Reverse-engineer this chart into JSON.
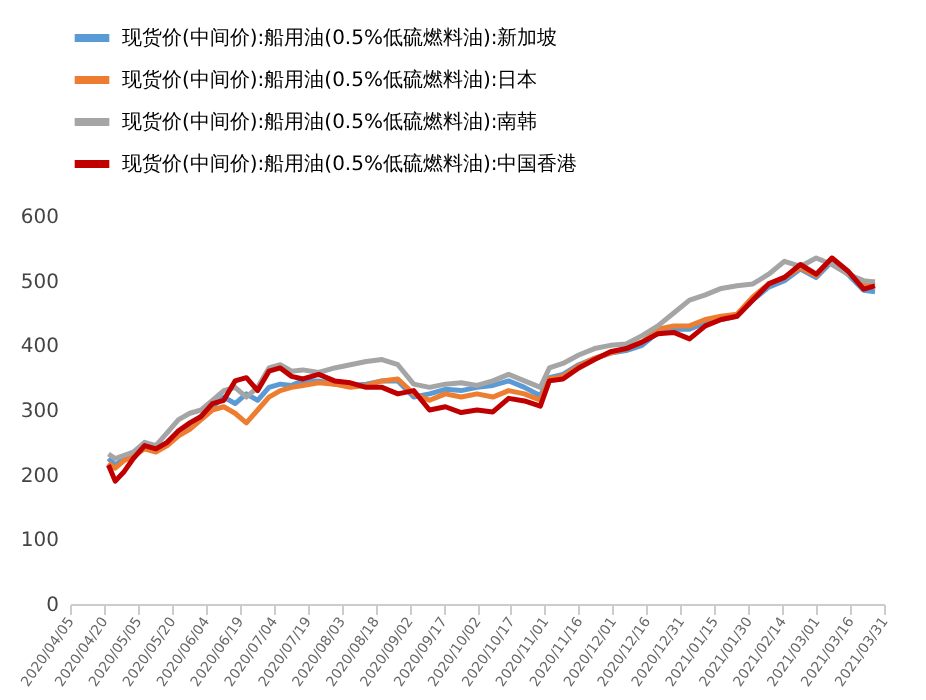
{
  "chart_data": {
    "type": "line",
    "legend": "top",
    "grid": false,
    "line_style": "solid",
    "marker": "none",
    "x": [
      "2020-04-22",
      "2020-04-25",
      "2020-04-29",
      "2020-05-03",
      "2020-05-08",
      "2020-05-13",
      "2020-05-18",
      "2020-05-23",
      "2020-05-28",
      "2020-06-02",
      "2020-06-07",
      "2020-06-12",
      "2020-06-17",
      "2020-06-22",
      "2020-06-27",
      "2020-07-02",
      "2020-07-07",
      "2020-07-12",
      "2020-07-17",
      "2020-07-24",
      "2020-07-31",
      "2020-08-07",
      "2020-08-14",
      "2020-08-21",
      "2020-08-28",
      "2020-09-04",
      "2020-09-11",
      "2020-09-18",
      "2020-09-25",
      "2020-10-02",
      "2020-10-09",
      "2020-10-16",
      "2020-10-23",
      "2020-10-30",
      "2020-11-03",
      "2020-11-09",
      "2020-11-16",
      "2020-11-23",
      "2020-11-30",
      "2020-12-07",
      "2020-12-14",
      "2020-12-21",
      "2020-12-28",
      "2021-01-04",
      "2021-01-11",
      "2021-01-18",
      "2021-01-25",
      "2021-02-01",
      "2021-02-08",
      "2021-02-15",
      "2021-02-22",
      "2021-03-01",
      "2021-03-08",
      "2021-03-15",
      "2021-03-22",
      "2021-03-27"
    ],
    "series": [
      {
        "name": "现货价(中间价):船用油(0.5%低硫燃料油):新加坡",
        "color": "#5b9bd5",
        "values": [
          225,
          215,
          225,
          230,
          245,
          238,
          250,
          265,
          275,
          290,
          305,
          320,
          310,
          325,
          315,
          335,
          340,
          338,
          345,
          345,
          340,
          338,
          340,
          345,
          345,
          320,
          325,
          332,
          330,
          335,
          338,
          345,
          335,
          322,
          350,
          355,
          370,
          380,
          388,
          392,
          400,
          420,
          425,
          425,
          435,
          440,
          445,
          470,
          490,
          500,
          518,
          505,
          530,
          510,
          485,
          483
        ]
      },
      {
        "name": "现货价(中间价):船用油(0.5%低硫燃料油):日本",
        "color": "#ed7d31",
        "values": [
          218,
          210,
          222,
          228,
          240,
          235,
          245,
          260,
          270,
          285,
          300,
          305,
          295,
          280,
          300,
          320,
          330,
          335,
          338,
          342,
          340,
          335,
          338,
          345,
          348,
          325,
          315,
          325,
          320,
          325,
          320,
          330,
          325,
          315,
          348,
          352,
          368,
          380,
          388,
          395,
          405,
          425,
          430,
          430,
          440,
          445,
          448,
          475,
          495,
          505,
          520,
          508,
          535,
          512,
          495,
          498
        ]
      },
      {
        "name": "现货价(中间价):船用油(0.5%低硫燃料油):南韩",
        "color": "#a5a5a5",
        "values": [
          232,
          225,
          230,
          235,
          250,
          245,
          265,
          285,
          295,
          300,
          315,
          330,
          335,
          320,
          335,
          365,
          370,
          360,
          362,
          358,
          365,
          370,
          375,
          378,
          370,
          340,
          335,
          340,
          342,
          338,
          345,
          355,
          345,
          335,
          365,
          372,
          385,
          395,
          400,
          402,
          415,
          430,
          450,
          470,
          478,
          488,
          492,
          495,
          510,
          530,
          522,
          535,
          525,
          510,
          500,
          498
        ]
      },
      {
        "name": "现货价(中间价):船用油(0.5%低硫燃料油):中国香港",
        "color": "#c00000",
        "values": [
          215,
          190,
          205,
          225,
          245,
          240,
          250,
          268,
          280,
          290,
          310,
          315,
          345,
          350,
          330,
          360,
          365,
          352,
          348,
          355,
          345,
          342,
          335,
          335,
          325,
          330,
          300,
          305,
          296,
          300,
          297,
          318,
          314,
          306,
          345,
          348,
          365,
          378,
          390,
          395,
          405,
          418,
          420,
          410,
          430,
          440,
          445,
          470,
          495,
          505,
          525,
          510,
          535,
          515,
          487,
          492
        ]
      }
    ],
    "xlim": [
      "2020-04-05",
      "2021-03-31"
    ],
    "xticks": [
      {
        "value": "2020-04-05",
        "label": "2020/04/05"
      },
      {
        "value": "2020-04-20",
        "label": "2020/04/20"
      },
      {
        "value": "2020-05-05",
        "label": "2020/05/05"
      },
      {
        "value": "2020-05-20",
        "label": "2020/05/20"
      },
      {
        "value": "2020-06-04",
        "label": "2020/06/04"
      },
      {
        "value": "2020-06-19",
        "label": "2020/06/19"
      },
      {
        "value": "2020-07-04",
        "label": "2020/07/04"
      },
      {
        "value": "2020-07-19",
        "label": "2020/07/19"
      },
      {
        "value": "2020-08-03",
        "label": "2020/08/03"
      },
      {
        "value": "2020-08-18",
        "label": "2020/08/18"
      },
      {
        "value": "2020-09-02",
        "label": "2020/09/02"
      },
      {
        "value": "2020-09-17",
        "label": "2020/09/17"
      },
      {
        "value": "2020-10-02",
        "label": "2020/10/02"
      },
      {
        "value": "2020-10-17",
        "label": "2020/10/17"
      },
      {
        "value": "2020-11-01",
        "label": "2020/11/01"
      },
      {
        "value": "2020-11-16",
        "label": "2020/11/16"
      },
      {
        "value": "2020-12-01",
        "label": "2020/12/01"
      },
      {
        "value": "2020-12-16",
        "label": "2020/12/16"
      },
      {
        "value": "2020-12-31",
        "label": "2020/12/31"
      },
      {
        "value": "2021-01-15",
        "label": "2021/01/15"
      },
      {
        "value": "2021-01-30",
        "label": "2021/01/30"
      },
      {
        "value": "2021-02-14",
        "label": "2021/02/14"
      },
      {
        "value": "2021-03-01",
        "label": "2021/03/01"
      },
      {
        "value": "2021-03-16",
        "label": "2021/03/16"
      },
      {
        "value": "2021-03-31",
        "label": "2021/03/31"
      }
    ],
    "ylim": [
      0,
      600
    ],
    "yticks": [
      0,
      100,
      200,
      300,
      400,
      500,
      600
    ]
  }
}
